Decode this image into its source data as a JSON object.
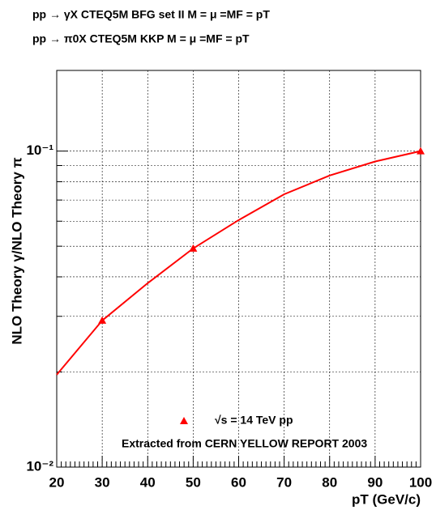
{
  "chart_data": {
    "type": "line",
    "title": "pp → γX CTEQ5M BFG set II M = μ =MF = pT",
    "subtitle": "pp → π0X CTEQ5M KKP M = μ =MF = pT",
    "y_label": "NLO Theory γ/NLO Theory π",
    "x_label": "pT (GeV/c)",
    "annotation": "Extracted from CERN YELLOW REPORT 2003",
    "log_y": true,
    "grid": true,
    "xlim": [
      20,
      100
    ],
    "xticks": [
      20,
      30,
      40,
      50,
      60,
      70,
      80,
      90,
      100
    ],
    "ylim": [
      0.01,
      0.18
    ],
    "yticks": [
      {
        "value": 0.01,
        "label": "10⁻²"
      },
      {
        "value": 0.1,
        "label": "10⁻¹"
      }
    ],
    "yminor": [
      0.02,
      0.03,
      0.04,
      0.05,
      0.06,
      0.07,
      0.08,
      0.09
    ],
    "series": [
      {
        "color": "#ff0000",
        "x": [
          20,
          30,
          40,
          50,
          60,
          70,
          80,
          90,
          100
        ],
        "values": [
          0.0196,
          0.0291,
          0.0382,
          0.0492,
          0.0605,
          0.073,
          0.0837,
          0.0927,
          0.1
        ]
      },
      {
        "name": "√s = 14  TeV pp",
        "color": "#ff0000",
        "marker": "triangle",
        "x": [
          30,
          50,
          100
        ],
        "values": [
          0.0291,
          0.0492,
          0.1
        ]
      }
    ]
  }
}
